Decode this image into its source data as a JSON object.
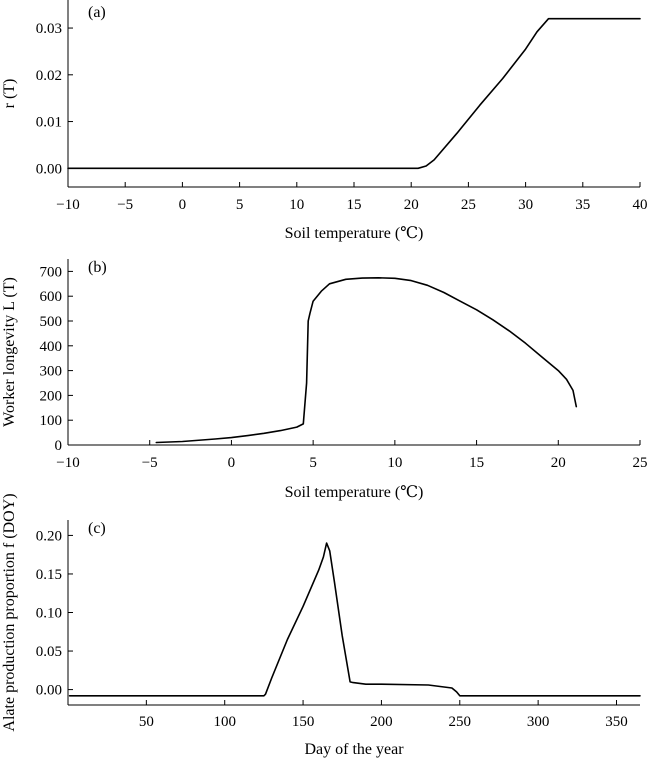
{
  "chart_data": [
    {
      "type": "line",
      "panel_label": "(a)",
      "title": "",
      "xlabel": "Soil temperature (℃)",
      "ylabel": "r (T)",
      "xlim": [
        -10,
        40
      ],
      "ylim": [
        -0.004,
        0.036
      ],
      "xticks": [
        -10,
        -5,
        0,
        5,
        10,
        15,
        20,
        25,
        30,
        35,
        40
      ],
      "yticks": [
        0.0,
        0.01,
        0.02,
        0.03
      ],
      "xtick_labels": [
        "−10",
        "−5",
        "0",
        "5",
        "10",
        "15",
        "20",
        "25",
        "30",
        "35",
        "40"
      ],
      "ytick_labels": [
        "0.00",
        "0.01",
        "0.02",
        "0.03"
      ],
      "grid": false,
      "legend": "none",
      "series": [
        {
          "x": [
            -10,
            20.6,
            21.3,
            22,
            24,
            26,
            28,
            30,
            31,
            32,
            40
          ],
          "y": [
            0,
            0,
            0.0005,
            0.0018,
            0.0075,
            0.0135,
            0.0192,
            0.0255,
            0.0292,
            0.032,
            0.032
          ]
        }
      ]
    },
    {
      "type": "line",
      "panel_label": "(b)",
      "title": "",
      "xlabel": "Soil temperature (℃)",
      "ylabel": "Worker longevity L (T)",
      "xlim": [
        -10,
        25
      ],
      "ylim": [
        0,
        750
      ],
      "xticks": [
        -10,
        -5,
        0,
        5,
        10,
        15,
        20,
        25
      ],
      "yticks": [
        0,
        100,
        200,
        300,
        400,
        500,
        600,
        700
      ],
      "xtick_labels": [
        "−10",
        "−5",
        "0",
        "5",
        "10",
        "15",
        "20",
        "25"
      ],
      "ytick_labels": [
        "0",
        "100",
        "200",
        "300",
        "400",
        "500",
        "600",
        "700"
      ],
      "grid": false,
      "legend": "none",
      "series": [
        {
          "x": [
            -4.6,
            -3,
            -1,
            0,
            1,
            2,
            3,
            4,
            4.4,
            4.6,
            4.7,
            4.8,
            5.0,
            5.5,
            6,
            7,
            8,
            9,
            10,
            11,
            12,
            13,
            14,
            15,
            16,
            17,
            18,
            19,
            20,
            20.5,
            20.9,
            21.1
          ],
          "y": [
            10,
            14,
            24,
            30,
            38,
            47,
            58,
            72,
            85,
            250,
            500,
            530,
            580,
            620,
            650,
            668,
            673,
            674,
            672,
            663,
            644,
            615,
            580,
            545,
            505,
            460,
            410,
            355,
            300,
            265,
            220,
            155
          ]
        }
      ]
    },
    {
      "type": "line",
      "panel_label": "(c)",
      "title": "",
      "xlabel": "Day of the year",
      "ylabel": "Alate production proportion f (DOY)",
      "xlim": [
        0,
        365
      ],
      "ylim": [
        -0.02,
        0.22
      ],
      "xticks": [
        50,
        100,
        150,
        200,
        250,
        300,
        350
      ],
      "yticks": [
        0.0,
        0.05,
        0.1,
        0.15,
        0.2
      ],
      "xtick_labels": [
        "50",
        "100",
        "150",
        "200",
        "250",
        "300",
        "350"
      ],
      "ytick_labels": [
        "0.00",
        "0.05",
        "0.10",
        "0.15",
        "0.20"
      ],
      "grid": false,
      "legend": "none",
      "series": [
        {
          "x": [
            1,
            125,
            126,
            130,
            140,
            150,
            160,
            163,
            165,
            167,
            170,
            175,
            180,
            182,
            190,
            200,
            230,
            245,
            248,
            250,
            365
          ],
          "y": [
            -0.008,
            -0.008,
            -0.006,
            0.015,
            0.065,
            0.108,
            0.155,
            0.172,
            0.19,
            0.18,
            0.14,
            0.07,
            0.01,
            0.009,
            0.007,
            0.007,
            0.006,
            0.002,
            -0.003,
            -0.008,
            -0.008
          ]
        }
      ]
    }
  ]
}
